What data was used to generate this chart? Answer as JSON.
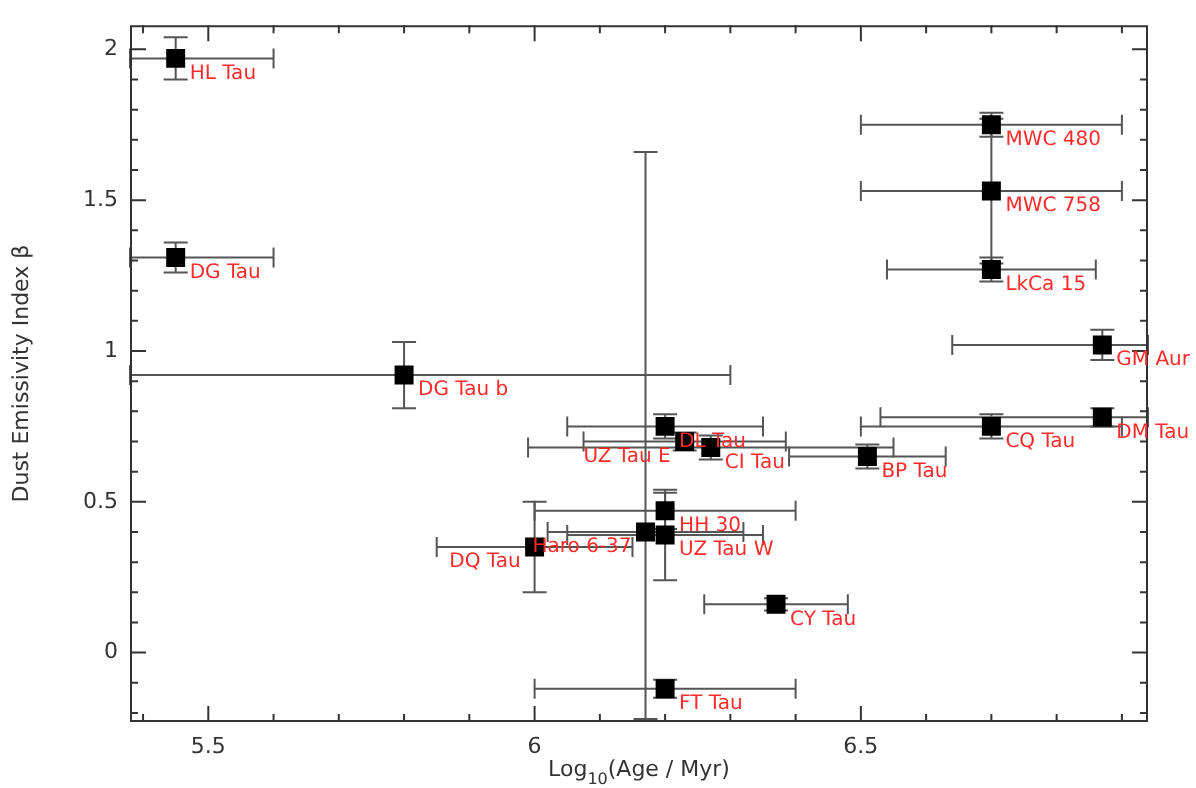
{
  "chart_data": {
    "type": "scatter",
    "xlabel": "Log$_{10}$(Age / Myr)",
    "ylabel": "Dust Emissivity Index β",
    "marker": "square",
    "xlim": [
      5.38,
      6.94
    ],
    "ylim": [
      -0.23,
      2.08
    ],
    "xticks": [
      {
        "value": 5.4,
        "label": null
      },
      5.5,
      {
        "value": 5.6,
        "label": null
      },
      {
        "value": 5.7,
        "label": null
      },
      {
        "value": 5.8,
        "label": null
      },
      {
        "value": 5.9,
        "label": null
      },
      6,
      {
        "value": 6.1,
        "label": null
      },
      {
        "value": 6.2,
        "label": null
      },
      {
        "value": 6.3,
        "label": null
      },
      {
        "value": 6.4,
        "label": null
      },
      6.5,
      {
        "value": 6.6,
        "label": null
      },
      {
        "value": 6.7,
        "label": null
      },
      {
        "value": 6.8,
        "label": null
      },
      {
        "value": 6.9,
        "label": null
      }
    ],
    "yticks": [
      {
        "value": -0.2,
        "label": null
      },
      {
        "value": -0.1,
        "label": null
      },
      0,
      {
        "value": 0.1,
        "label": null
      },
      {
        "value": 0.2,
        "label": null
      },
      {
        "value": 0.3,
        "label": null
      },
      {
        "value": 0.4,
        "label": null
      },
      0.5,
      {
        "value": 0.6,
        "label": null
      },
      {
        "value": 0.7,
        "label": null
      },
      {
        "value": 0.8,
        "label": null
      },
      {
        "value": 0.9,
        "label": null
      },
      1,
      {
        "value": 1.1,
        "label": null
      },
      {
        "value": 1.2,
        "label": null
      },
      {
        "value": 1.3,
        "label": null
      },
      {
        "value": 1.4,
        "label": null
      },
      1.5,
      {
        "value": 1.6,
        "label": null
      },
      {
        "value": 1.7,
        "label": null
      },
      {
        "value": 1.8,
        "label": null
      },
      {
        "value": 1.9,
        "label": null
      },
      2
    ],
    "series": [
      {
        "color": "#000000",
        "x": [
          5.45,
          5.45,
          5.8,
          6.7,
          6.7,
          6.7,
          6.87,
          6.87,
          6.7,
          6.51,
          6.2,
          6.23,
          6.27,
          6.2,
          6.17,
          6.2,
          6.0,
          6.37,
          6.2
        ],
        "values": [
          1.97,
          1.31,
          0.92,
          1.75,
          1.53,
          1.27,
          1.02,
          0.78,
          0.75,
          0.65,
          0.75,
          0.7,
          0.68,
          0.47,
          0.4,
          0.39,
          0.35,
          0.16,
          -0.12
        ],
        "errors": [
          0.07,
          0.05,
          0.11,
          0.04,
          0.24,
          0.04,
          0.05,
          0.03,
          0.04,
          0.04,
          0.04,
          0.03,
          0.04,
          0.06,
          [
            -0.22,
            1.66
          ],
          0.15,
          0.15,
          0.02,
          0.03
        ],
        "xerrors": [
          [
            5.38,
            5.6
          ],
          [
            5.38,
            5.6
          ],
          [
            5.38,
            6.3
          ],
          0.2,
          0.2,
          0.16,
          [
            6.64,
            6.94
          ],
          [
            6.53,
            6.94
          ],
          0.2,
          0.12,
          0.15,
          0.155,
          0.28,
          0.2,
          0.15,
          0.15,
          0.15,
          0.11,
          0.2
        ]
      }
    ],
    "annotations": [
      {
        "text": "HL Tau",
        "x": 5.45,
        "y": 1.97
      },
      {
        "text": "DG Tau",
        "x": 5.45,
        "y": 1.31
      },
      {
        "text": "DG Tau b",
        "x": 5.8,
        "y": 0.92
      },
      {
        "text": "MWC 480",
        "x": 6.7,
        "y": 1.75
      },
      {
        "text": "MWC 758",
        "x": 6.7,
        "y": 1.53
      },
      {
        "text": "LkCa 15",
        "x": 6.7,
        "y": 1.27
      },
      {
        "text": "GM Aur",
        "x": 6.87,
        "y": 1.02
      },
      {
        "text": "DM Tau",
        "x": 6.87,
        "y": 0.78
      },
      {
        "text": "CQ Tau",
        "x": 6.7,
        "y": 0.75
      },
      {
        "text": "BP Tau",
        "x": 6.51,
        "y": 0.65
      },
      {
        "text": "DL Tau",
        "x": 6.2,
        "y": 0.75
      },
      {
        "text": "UZ Tau E",
        "x": 6.23,
        "y": 0.7
      },
      {
        "text": "CI Tau",
        "x": 6.27,
        "y": 0.68
      },
      {
        "text": "HH 30",
        "x": 6.2,
        "y": 0.47
      },
      {
        "text": "Haro 6-37",
        "x": 6.17,
        "y": 0.4
      },
      {
        "text": "UZ Tau W",
        "x": 6.2,
        "y": 0.39
      },
      {
        "text": "DQ Tau",
        "x": 6.0,
        "y": 0.35
      },
      {
        "text": "CY Tau",
        "x": 6.37,
        "y": 0.16
      },
      {
        "text": "FT Tau",
        "x": 6.2,
        "y": -0.12
      }
    ]
  }
}
